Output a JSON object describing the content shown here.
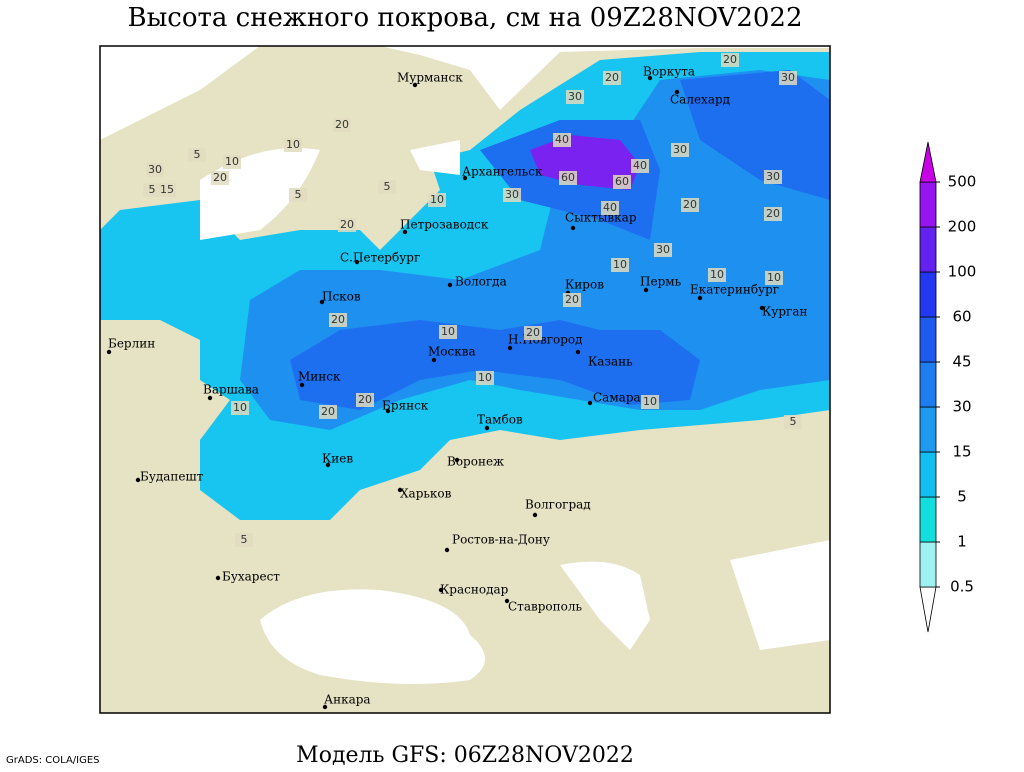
{
  "title": "Высота снежного покрова, см на 09Z28NOV2022",
  "footer": "Модель GFS: 06Z28NOV2022",
  "credit": "GrADS: COLA/IGES",
  "colorbar": {
    "levels": [
      0.5,
      1,
      5,
      15,
      30,
      45,
      60,
      100,
      200,
      500
    ],
    "colors": [
      "#ffffff",
      "#9ff2f2",
      "#12dede",
      "#14bef0",
      "#1e9af0",
      "#1e7ef0",
      "#1e5cf0",
      "#2238f0",
      "#6422f0",
      "#9614f0",
      "#c800e6"
    ]
  },
  "cities": [
    "Мурманск",
    "Воркута",
    "Салехард",
    "Архангельск",
    "Сыктывкар",
    "Петрозаводск",
    "С.Петербург",
    "Вологда",
    "Киров",
    "Пермь",
    "Екатеринбург",
    "Курган",
    "Псков",
    "Берлин",
    "Н.Новгород",
    "Москва",
    "Казань",
    "Минск",
    "Варшава",
    "Самара",
    "Брянск",
    "Тамбов",
    "Киев",
    "Воронеж",
    "Будапешт",
    "Харьков",
    "Волгоград",
    "Ростов-на-Дону",
    "Бухарест",
    "Краснодар",
    "Ставрополь",
    "Анкара"
  ],
  "contour_labels": [
    30,
    5,
    15,
    20,
    10,
    5,
    10,
    20,
    5,
    5,
    10,
    20,
    30,
    30,
    20,
    40,
    60,
    60,
    40,
    40,
    30,
    20,
    30,
    20,
    30,
    30,
    20,
    10,
    10,
    10,
    20,
    20,
    10,
    20,
    10,
    20,
    20,
    10,
    10,
    5,
    5
  ]
}
